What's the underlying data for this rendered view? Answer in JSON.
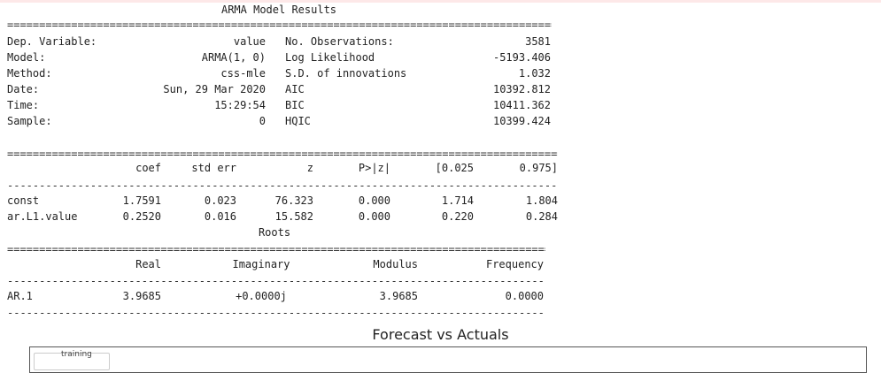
{
  "summary": {
    "title": "ARMA Model Results",
    "sep_double": "=============================================================================================",
    "sep_single": "---------------------------------------------------------------------------------------------",
    "header_rows": [
      {
        "label": "Dep. Variable:",
        "value": "value",
        "label2": "No. Observations:",
        "value2": "3581"
      },
      {
        "label": "Model:",
        "value": "ARMA(1, 0)",
        "label2": "Log Likelihood",
        "value2": "-5193.406"
      },
      {
        "label": "Method:",
        "value": "css-mle",
        "label2": "S.D. of innovations",
        "value2": "1.032"
      },
      {
        "label": "Date:",
        "value": "Sun, 29 Mar 2020",
        "label2": "AIC",
        "value2": "10392.812"
      },
      {
        "label": "Time:",
        "value": "15:29:54",
        "label2": "BIC",
        "value2": "10411.362"
      },
      {
        "label": "Sample:",
        "value": "0",
        "label2": "HQIC",
        "value2": "10399.424"
      }
    ],
    "coef_columns": [
      "coef",
      "std err",
      "z",
      "P>|z|",
      "[0.025",
      "0.975]"
    ],
    "coef_rows": [
      {
        "name": "const",
        "coef": "1.7591",
        "std_err": "0.023",
        "z": "76.323",
        "p": "0.000",
        "lo": "1.714",
        "hi": "1.804"
      },
      {
        "name": "ar.L1.value",
        "coef": "0.2520",
        "std_err": "0.016",
        "z": "15.582",
        "p": "0.000",
        "lo": "0.220",
        "hi": "0.284"
      }
    ],
    "roots_title": "Roots",
    "roots_columns": [
      "Real",
      "Imaginary",
      "Modulus",
      "Frequency"
    ],
    "roots_rows": [
      {
        "name": "AR.1",
        "real": "3.9685",
        "imag": "+0.0000j",
        "modulus": "3.9685",
        "frequency": "0.0000"
      }
    ]
  },
  "chart": {
    "title": "Forecast vs Actuals",
    "legend_partial": "training"
  }
}
